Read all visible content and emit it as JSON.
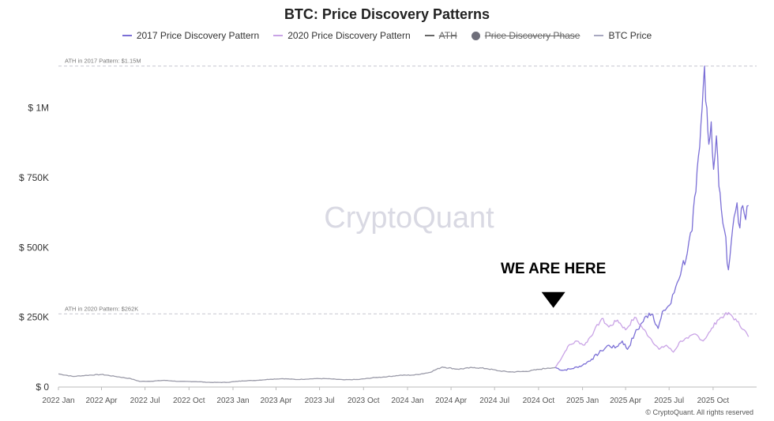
{
  "chart_data": {
    "type": "line",
    "title": "BTC: Price Discovery Patterns",
    "xlabel": "",
    "ylabel": "",
    "x_range": [
      "2022-01-01",
      "2025-12-31"
    ],
    "ylim": [
      0,
      1200000
    ],
    "y_ticks": [
      {
        "value": 0,
        "label": "$ 0"
      },
      {
        "value": 250000,
        "label": "$ 250K"
      },
      {
        "value": 500000,
        "label": "$ 500K"
      },
      {
        "value": 750000,
        "label": "$ 750K"
      },
      {
        "value": 1000000,
        "label": "$ 1M"
      }
    ],
    "x_ticks": [
      {
        "date": "2022-01-01",
        "label": "2022 Jan"
      },
      {
        "date": "2022-04-01",
        "label": "2022 Apr"
      },
      {
        "date": "2022-07-01",
        "label": "2022 Jul"
      },
      {
        "date": "2022-10-01",
        "label": "2022 Oct"
      },
      {
        "date": "2023-01-01",
        "label": "2023 Jan"
      },
      {
        "date": "2023-04-01",
        "label": "2023 Apr"
      },
      {
        "date": "2023-07-01",
        "label": "2023 Jul"
      },
      {
        "date": "2023-10-01",
        "label": "2023 Oct"
      },
      {
        "date": "2024-01-01",
        "label": "2024 Jan"
      },
      {
        "date": "2024-04-01",
        "label": "2024 Apr"
      },
      {
        "date": "2024-07-01",
        "label": "2024 Jul"
      },
      {
        "date": "2024-10-01",
        "label": "2024 Oct"
      },
      {
        "date": "2025-01-01",
        "label": "2025 Jan"
      },
      {
        "date": "2025-04-01",
        "label": "2025 Apr"
      },
      {
        "date": "2025-07-01",
        "label": "2025 Jul"
      },
      {
        "date": "2025-10-01",
        "label": "2025 Oct"
      }
    ],
    "grid": false,
    "legend_placement": "top",
    "legend": [
      {
        "label": "2017 Price Discovery Pattern",
        "color": "#7b6fd6",
        "marker": "line",
        "visible": true
      },
      {
        "label": "2020 Price Discovery Pattern",
        "color": "#c9a3e6",
        "marker": "line",
        "visible": true
      },
      {
        "label": "ATH",
        "color": "#666666",
        "marker": "line",
        "visible": false
      },
      {
        "label": "Price Discovery Phase",
        "color": "#6e6e7a",
        "marker": "dot",
        "visible": false
      },
      {
        "label": "BTC Price",
        "color": "#a8a8c0",
        "marker": "line",
        "visible": true
      }
    ],
    "reference_lines": [
      {
        "value": 1150000,
        "label": "ATH in 2017 Pattern: $1.15M"
      },
      {
        "value": 262000,
        "label": "ATH in 2020 Pattern: $262K"
      }
    ],
    "annotations": [
      {
        "text": "WE ARE HERE",
        "date": "2024-11-01",
        "value": 295000
      }
    ],
    "watermark": "CryptoQuant",
    "copyright": "© CryptoQuant. All rights reserved",
    "series": [
      {
        "name": "BTC Price",
        "color": "#9a9aa8",
        "points": [
          [
            "2022-01-01",
            47000
          ],
          [
            "2022-02-01",
            38000
          ],
          [
            "2022-03-01",
            42000
          ],
          [
            "2022-04-01",
            45000
          ],
          [
            "2022-05-01",
            38000
          ],
          [
            "2022-06-01",
            30000
          ],
          [
            "2022-06-20",
            20000
          ],
          [
            "2022-07-15",
            21000
          ],
          [
            "2022-08-10",
            24000
          ],
          [
            "2022-09-10",
            20000
          ],
          [
            "2022-10-15",
            19500
          ],
          [
            "2022-11-15",
            16500
          ],
          [
            "2022-12-20",
            16800
          ],
          [
            "2023-01-20",
            22000
          ],
          [
            "2023-02-20",
            24000
          ],
          [
            "2023-03-20",
            28000
          ],
          [
            "2023-04-15",
            30000
          ],
          [
            "2023-05-15",
            27000
          ],
          [
            "2023-06-20",
            30000
          ],
          [
            "2023-07-15",
            30000
          ],
          [
            "2023-08-20",
            26000
          ],
          [
            "2023-09-20",
            27000
          ],
          [
            "2023-10-25",
            34000
          ],
          [
            "2023-11-20",
            37000
          ],
          [
            "2023-12-15",
            42000
          ],
          [
            "2024-01-15",
            43000
          ],
          [
            "2024-02-15",
            52000
          ],
          [
            "2024-03-14",
            72000
          ],
          [
            "2024-04-15",
            64000
          ],
          [
            "2024-05-20",
            70000
          ],
          [
            "2024-06-15",
            66000
          ],
          [
            "2024-07-10",
            58000
          ],
          [
            "2024-08-05",
            54000
          ],
          [
            "2024-09-05",
            56000
          ],
          [
            "2024-10-01",
            63000
          ],
          [
            "2024-10-20",
            68000
          ],
          [
            "2024-11-05",
            70000
          ]
        ]
      },
      {
        "name": "2017 Price Discovery Pattern",
        "color": "#7b6fd6",
        "points": [
          [
            "2024-11-05",
            70000
          ],
          [
            "2024-11-20",
            60000
          ],
          [
            "2024-12-10",
            66000
          ],
          [
            "2025-01-01",
            78000
          ],
          [
            "2025-01-20",
            100000
          ],
          [
            "2025-02-10",
            130000
          ],
          [
            "2025-02-25",
            150000
          ],
          [
            "2025-03-10",
            140000
          ],
          [
            "2025-03-25",
            165000
          ],
          [
            "2025-04-05",
            135000
          ],
          [
            "2025-04-20",
            190000
          ],
          [
            "2025-05-05",
            230000
          ],
          [
            "2025-05-20",
            265000
          ],
          [
            "2025-05-28",
            260000
          ],
          [
            "2025-06-08",
            210000
          ],
          [
            "2025-06-20",
            275000
          ],
          [
            "2025-07-05",
            300000
          ],
          [
            "2025-07-15",
            360000
          ],
          [
            "2025-07-28",
            430000
          ],
          [
            "2025-08-08",
            480000
          ],
          [
            "2025-08-18",
            560000
          ],
          [
            "2025-08-26",
            700000
          ],
          [
            "2025-09-03",
            860000
          ],
          [
            "2025-09-08",
            1000000
          ],
          [
            "2025-09-13",
            1150000
          ],
          [
            "2025-09-18",
            1000000
          ],
          [
            "2025-09-22",
            870000
          ],
          [
            "2025-09-27",
            950000
          ],
          [
            "2025-10-02",
            780000
          ],
          [
            "2025-10-08",
            900000
          ],
          [
            "2025-10-13",
            720000
          ],
          [
            "2025-10-18",
            640000
          ],
          [
            "2025-10-25",
            560000
          ],
          [
            "2025-11-02",
            420000
          ],
          [
            "2025-11-08",
            520000
          ],
          [
            "2025-11-14",
            610000
          ],
          [
            "2025-11-20",
            660000
          ],
          [
            "2025-11-26",
            570000
          ],
          [
            "2025-12-02",
            650000
          ],
          [
            "2025-12-08",
            600000
          ],
          [
            "2025-12-14",
            650000
          ]
        ]
      },
      {
        "name": "2020 Price Discovery Pattern",
        "color": "#c9a3e6",
        "points": [
          [
            "2024-11-05",
            70000
          ],
          [
            "2024-11-20",
            110000
          ],
          [
            "2024-12-01",
            145000
          ],
          [
            "2024-12-20",
            165000
          ],
          [
            "2025-01-05",
            150000
          ],
          [
            "2025-01-25",
            200000
          ],
          [
            "2025-02-10",
            245000
          ],
          [
            "2025-02-25",
            215000
          ],
          [
            "2025-03-15",
            240000
          ],
          [
            "2025-04-01",
            205000
          ],
          [
            "2025-04-20",
            250000
          ],
          [
            "2025-05-05",
            215000
          ],
          [
            "2025-05-25",
            170000
          ],
          [
            "2025-06-10",
            135000
          ],
          [
            "2025-06-25",
            150000
          ],
          [
            "2025-07-10",
            125000
          ],
          [
            "2025-07-25",
            165000
          ],
          [
            "2025-08-10",
            175000
          ],
          [
            "2025-08-25",
            190000
          ],
          [
            "2025-09-10",
            165000
          ],
          [
            "2025-09-25",
            200000
          ],
          [
            "2025-10-10",
            240000
          ],
          [
            "2025-10-25",
            258000
          ],
          [
            "2025-11-05",
            262000
          ],
          [
            "2025-11-20",
            235000
          ],
          [
            "2025-12-05",
            205000
          ],
          [
            "2025-12-14",
            180000
          ]
        ]
      }
    ]
  }
}
